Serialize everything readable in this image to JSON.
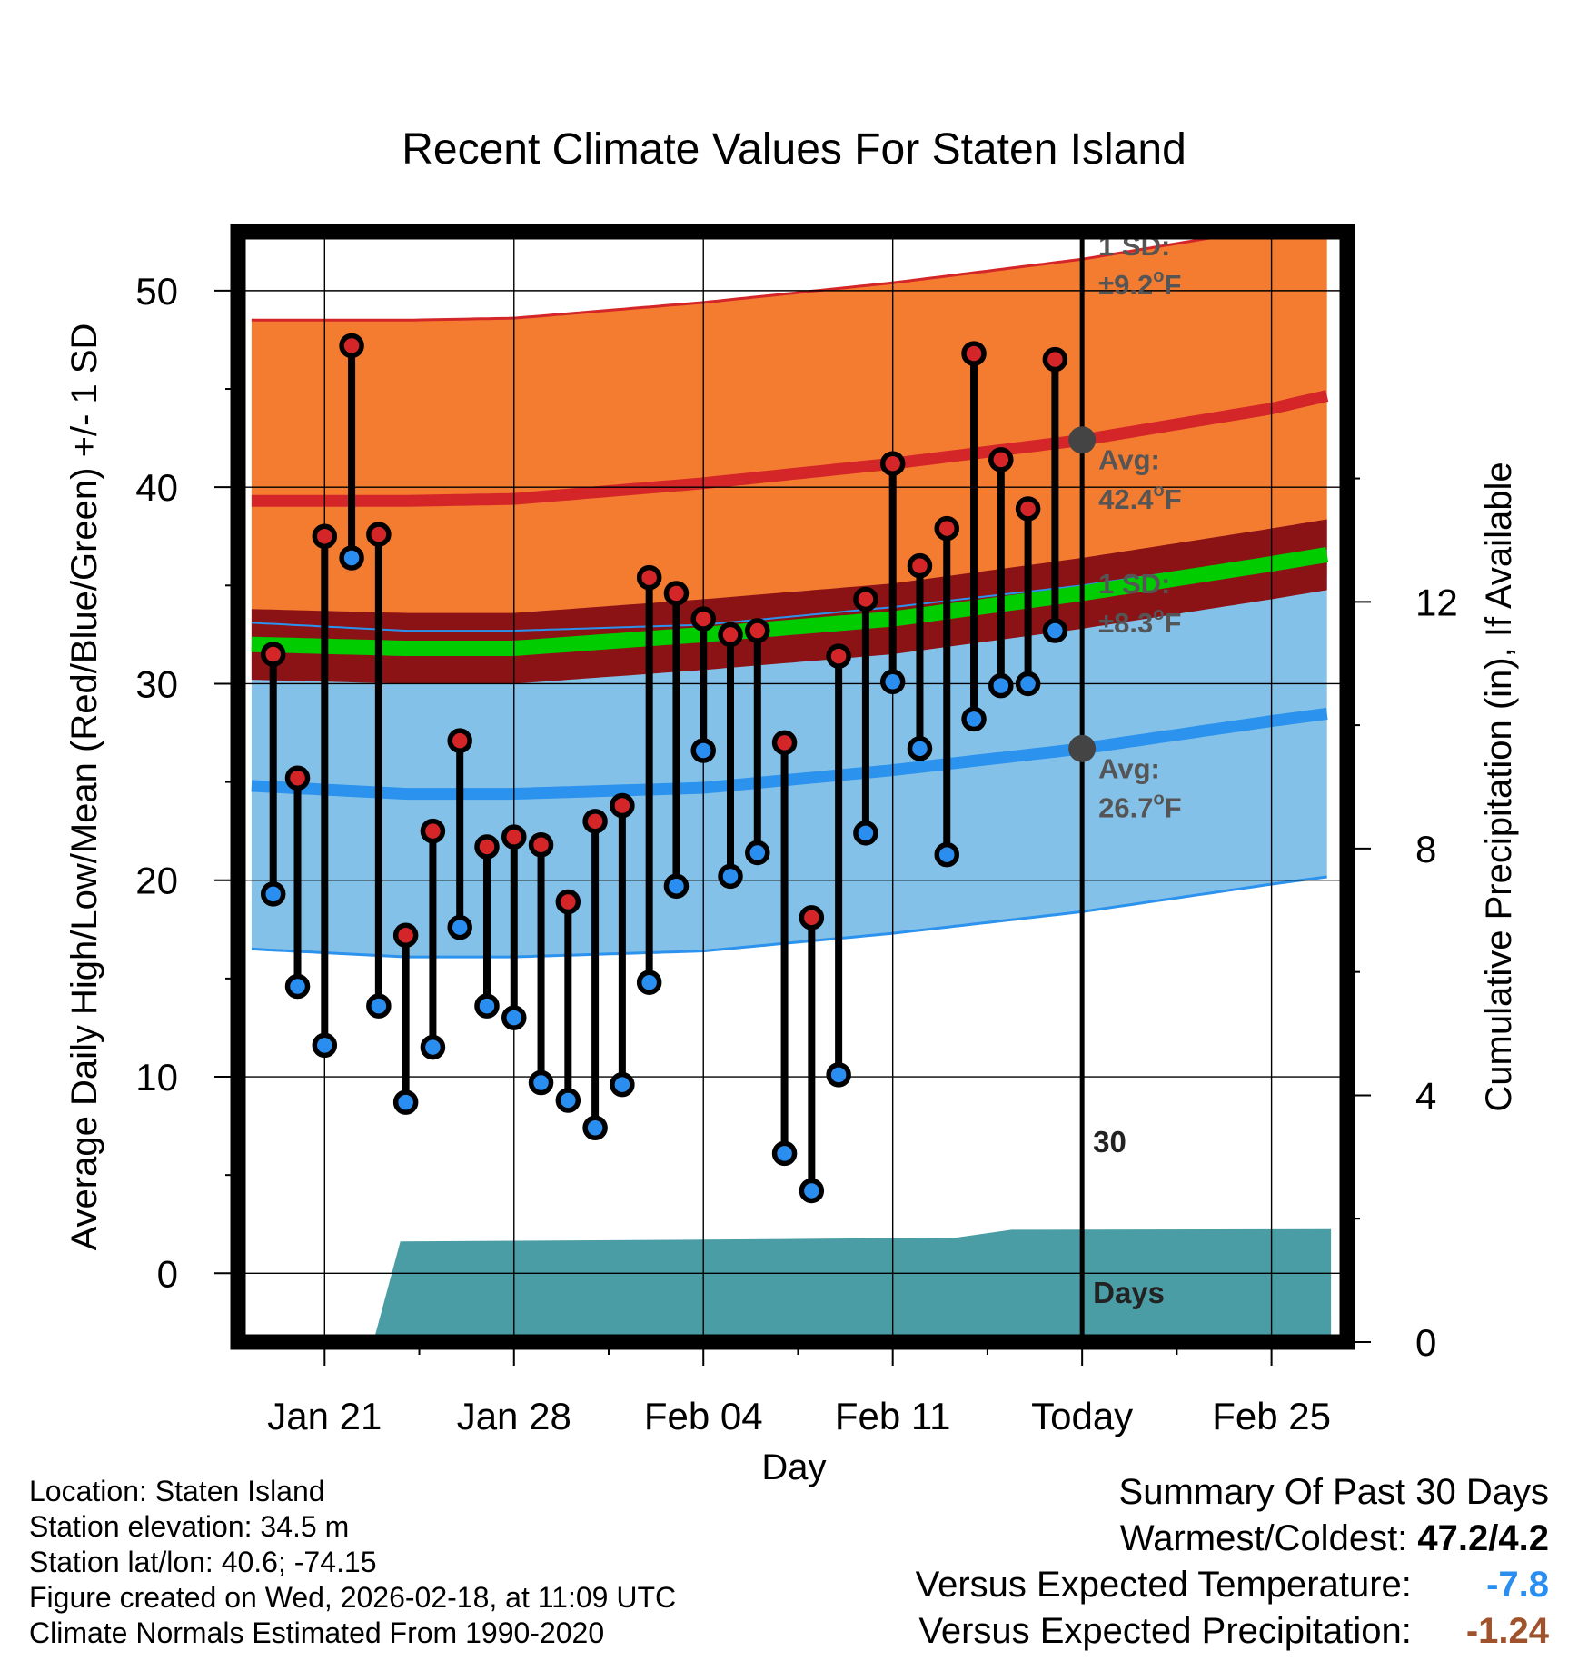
{
  "chart_data": {
    "type": "line",
    "title": "Recent Climate Values For Staten Island",
    "xlabel": "Day",
    "ylabel": "Average Daily High/Low/Mean (Red/Blue/Green) +/- 1 SD",
    "y2label": "Cumulative Precipitation (in), If Available",
    "ylim": [
      -3.5,
      53
    ],
    "y2lim": [
      0,
      18
    ],
    "xlim": [
      -2.2,
      38.8
    ],
    "yticks": [
      "0",
      "10",
      "20",
      "30",
      "40",
      "50"
    ],
    "yticks_values": [
      0,
      10,
      20,
      30,
      40,
      50
    ],
    "y2ticks": [
      "0",
      "4",
      "8",
      "12"
    ],
    "y2ticks_values": [
      0,
      4,
      8,
      12
    ],
    "xticks": [
      "Jan 21",
      "Jan 28",
      "Feb 04",
      "Feb 11",
      "Today",
      "Feb 25"
    ],
    "xticks_values": [
      1,
      8,
      15,
      22,
      29,
      36
    ],
    "today": 29,
    "normals": {
      "x": [
        -1.7,
        4,
        8,
        15,
        22,
        29,
        36,
        38.2
      ],
      "high_avg": [
        39.3,
        39.3,
        39.4,
        40.2,
        41.2,
        42.4,
        44.0,
        44.7
      ],
      "high_sd": 9.2,
      "low_avg": [
        24.8,
        24.4,
        24.4,
        24.7,
        25.6,
        26.7,
        28.1,
        28.5
      ],
      "low_sd": 8.3,
      "mean_avg": [
        32.0,
        31.8,
        31.8,
        32.5,
        33.3,
        34.6,
        36.1,
        36.6
      ]
    },
    "series": [
      {
        "name": "Daily High",
        "color": "#cc2222",
        "x": [
          -0.9,
          0,
          1,
          2,
          3,
          4,
          5,
          6,
          7,
          8,
          9,
          10,
          11,
          12,
          13,
          14,
          15,
          16,
          17,
          18,
          19,
          20,
          21,
          22,
          23,
          24,
          25,
          26,
          27,
          28
        ],
        "values": [
          31.5,
          25.2,
          37.5,
          47.2,
          37.6,
          17.2,
          22.5,
          27.1,
          21.7,
          22.2,
          21.8,
          18.9,
          23.0,
          23.8,
          35.4,
          34.6,
          33.3,
          32.5,
          32.7,
          27.0,
          18.1,
          31.4,
          34.3,
          41.2,
          36.0,
          37.9,
          46.8,
          41.4,
          38.9,
          46.5
        ]
      },
      {
        "name": "Daily Low",
        "color": "#2a8ef0",
        "x": [
          -0.9,
          0,
          1,
          2,
          3,
          4,
          5,
          6,
          7,
          8,
          9,
          10,
          11,
          12,
          13,
          14,
          15,
          16,
          17,
          18,
          19,
          20,
          21,
          22,
          23,
          24,
          25,
          26,
          27,
          28
        ],
        "values": [
          19.3,
          14.6,
          11.6,
          36.4,
          13.6,
          8.7,
          11.5,
          17.6,
          13.6,
          13.0,
          9.7,
          8.8,
          7.4,
          9.6,
          14.8,
          19.7,
          26.6,
          20.2,
          21.4,
          6.1,
          4.2,
          10.1,
          22.4,
          30.1,
          26.7,
          21.3,
          28.2,
          29.9,
          30.0,
          32.7
        ]
      },
      {
        "name": "Cumulative Precipitation",
        "color": "#4a9ca5",
        "x": [
          -1.7,
          2.8,
          3.8,
          11,
          15,
          18,
          21,
          24.3,
          26.4,
          38.2
        ],
        "values": [
          0,
          0,
          1.63,
          1.65,
          1.66,
          1.67,
          1.68,
          1.69,
          1.82,
          1.83
        ]
      }
    ],
    "annotations": {
      "high": {
        "label": "Avg:",
        "value": "42.4",
        "sd_label": "1 SD:",
        "sd_value": "±9.2",
        "unit_sup": "o",
        "unit": "F"
      },
      "low": {
        "label": "Avg:",
        "value": "26.7",
        "sd_label": "1 SD:",
        "sd_value": "±8.3",
        "unit_sup": "o",
        "unit": "F"
      },
      "precip": {
        "line1": "30",
        "line2": "Days"
      }
    },
    "colors": {
      "high_band": "#f47c30",
      "high_line": "#d42628",
      "mean_line": "#00cc00",
      "mean_band": "#8b1215",
      "low_band": "#84c1e8",
      "low_line": "#2b92ee",
      "precip_fill": "#4a9ca5",
      "today_dot": "#444444",
      "high_dot": "#d42628",
      "low_dot": "#2a8ef0"
    }
  },
  "footer": {
    "lines": [
      "Location: Staten Island",
      "Station elevation: 34.5 m",
      "Station lat/lon: 40.6; -74.15",
      "Figure created on Wed, 2026-02-18, at 11:09 UTC",
      "Climate Normals Estimated From 1990-2020"
    ],
    "summary": {
      "heading": "Summary Of Past 30 Days",
      "warmest_label": "Warmest/Coldest:",
      "warmest_value": "47.2/4.2",
      "temp_label": "Versus Expected Temperature:",
      "temp_value": "-7.8",
      "temp_color": "#2a8ef0",
      "precip_label": "Versus Expected Precipitation:",
      "precip_value": "-1.24",
      "precip_color": "#a0522d"
    }
  }
}
